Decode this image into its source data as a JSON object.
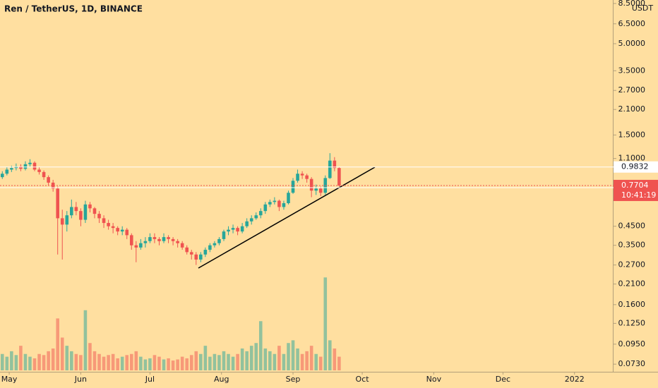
{
  "chart_data": {
    "type": "candlestick",
    "title": "Ren / TetherUS, 1D, BINANCE",
    "currency": "USDT",
    "log_scale": true,
    "background": "#ffdfa0",
    "up_color": "#26a69a",
    "down_color": "#ef5350",
    "ylim": [
      0.066,
      8.9
    ],
    "yticks": [
      {
        "value": 8.5,
        "label": "8.5000"
      },
      {
        "value": 6.5,
        "label": "6.5000"
      },
      {
        "value": 5,
        "label": "5.0000"
      },
      {
        "value": 3.5,
        "label": "3.5000"
      },
      {
        "value": 2.7,
        "label": "2.7000"
      },
      {
        "value": 2.1,
        "label": "2.1000"
      },
      {
        "value": 1.5,
        "label": "1.5000"
      },
      {
        "value": 1.1,
        "label": "1.1000"
      },
      {
        "value": 0.45,
        "label": "0.4500"
      },
      {
        "value": 0.35,
        "label": "0.3500"
      },
      {
        "value": 0.27,
        "label": "0.2700"
      },
      {
        "value": 0.21,
        "label": "0.2100"
      },
      {
        "value": 0.16,
        "label": "0.1600"
      },
      {
        "value": 0.125,
        "label": "0.1250"
      },
      {
        "value": 0.095,
        "label": "0.0950"
      },
      {
        "value": 0.073,
        "label": "0.0730"
      }
    ],
    "xlim": [
      0,
      132.5
    ],
    "xticks": [
      {
        "value": 2,
        "label": "May"
      },
      {
        "value": 17.5,
        "label": "Jun"
      },
      {
        "value": 32.5,
        "label": "Jul"
      },
      {
        "value": 48,
        "label": "Aug"
      },
      {
        "value": 63.5,
        "label": "Sep"
      },
      {
        "value": 78.5,
        "label": "Oct"
      },
      {
        "value": 94,
        "label": "Nov"
      },
      {
        "value": 109,
        "label": "Dec"
      },
      {
        "value": 124.5,
        "label": "2022"
      }
    ],
    "open": [
      0.86,
      0.9,
      0.95,
      0.97,
      0.99,
      0.96,
      1.02,
      1.04,
      0.95,
      0.92,
      0.86,
      0.8,
      0.74,
      0.5,
      0.46,
      0.52,
      0.58,
      0.55,
      0.49,
      0.6,
      0.57,
      0.53,
      0.5,
      0.47,
      0.45,
      0.44,
      0.42,
      0.43,
      0.4,
      0.35,
      0.34,
      0.36,
      0.37,
      0.39,
      0.38,
      0.37,
      0.39,
      0.38,
      0.37,
      0.36,
      0.34,
      0.32,
      0.31,
      0.29,
      0.31,
      0.33,
      0.35,
      0.36,
      0.38,
      0.42,
      0.43,
      0.44,
      0.42,
      0.45,
      0.48,
      0.5,
      0.52,
      0.55,
      0.6,
      0.62,
      0.63,
      0.58,
      0.61,
      0.7,
      0.82,
      0.9,
      0.88,
      0.84,
      0.72,
      0.74,
      0.7,
      0.85,
      1.07,
      0.97
    ],
    "high": [
      0.93,
      0.98,
      1.0,
      1.03,
      1.02,
      1.06,
      1.09,
      1.06,
      0.98,
      0.94,
      0.88,
      0.83,
      0.76,
      0.56,
      0.55,
      0.64,
      0.62,
      0.57,
      0.63,
      0.62,
      0.58,
      0.55,
      0.52,
      0.49,
      0.47,
      0.45,
      0.45,
      0.44,
      0.41,
      0.37,
      0.38,
      0.39,
      0.41,
      0.41,
      0.39,
      0.41,
      0.4,
      0.39,
      0.38,
      0.37,
      0.35,
      0.33,
      0.32,
      0.32,
      0.34,
      0.36,
      0.37,
      0.39,
      0.43,
      0.45,
      0.46,
      0.45,
      0.47,
      0.5,
      0.52,
      0.54,
      0.57,
      0.62,
      0.64,
      0.66,
      0.64,
      0.63,
      0.72,
      0.85,
      0.95,
      0.93,
      0.9,
      0.86,
      0.78,
      0.76,
      0.88,
      1.18,
      1.12,
      0.98
    ],
    "low": [
      0.84,
      0.88,
      0.92,
      0.94,
      0.93,
      0.94,
      0.99,
      0.93,
      0.89,
      0.83,
      0.77,
      0.71,
      0.31,
      0.29,
      0.42,
      0.5,
      0.52,
      0.45,
      0.47,
      0.54,
      0.5,
      0.47,
      0.44,
      0.43,
      0.41,
      0.4,
      0.4,
      0.38,
      0.33,
      0.28,
      0.33,
      0.34,
      0.36,
      0.36,
      0.35,
      0.36,
      0.36,
      0.35,
      0.34,
      0.33,
      0.31,
      0.29,
      0.27,
      0.28,
      0.3,
      0.32,
      0.34,
      0.35,
      0.37,
      0.4,
      0.41,
      0.4,
      0.41,
      0.44,
      0.46,
      0.49,
      0.5,
      0.53,
      0.58,
      0.6,
      0.55,
      0.56,
      0.6,
      0.69,
      0.8,
      0.84,
      0.8,
      0.66,
      0.68,
      0.67,
      0.68,
      0.84,
      0.93,
      0.76
    ],
    "close": [
      0.9,
      0.95,
      0.97,
      0.99,
      0.96,
      1.02,
      1.04,
      0.95,
      0.92,
      0.86,
      0.8,
      0.74,
      0.5,
      0.46,
      0.52,
      0.58,
      0.55,
      0.49,
      0.6,
      0.57,
      0.53,
      0.5,
      0.47,
      0.45,
      0.44,
      0.42,
      0.43,
      0.4,
      0.35,
      0.34,
      0.36,
      0.37,
      0.39,
      0.38,
      0.37,
      0.39,
      0.38,
      0.37,
      0.36,
      0.34,
      0.32,
      0.31,
      0.29,
      0.31,
      0.33,
      0.35,
      0.36,
      0.38,
      0.42,
      0.43,
      0.44,
      0.42,
      0.45,
      0.48,
      0.5,
      0.52,
      0.55,
      0.6,
      0.62,
      0.63,
      0.58,
      0.61,
      0.7,
      0.82,
      0.9,
      0.88,
      0.84,
      0.72,
      0.74,
      0.7,
      0.85,
      1.07,
      0.97,
      0.77
    ],
    "volume": [
      30,
      25,
      35,
      28,
      45,
      30,
      25,
      22,
      30,
      28,
      35,
      40,
      95,
      60,
      45,
      35,
      30,
      28,
      110,
      50,
      35,
      30,
      25,
      28,
      30,
      22,
      25,
      28,
      30,
      35,
      25,
      20,
      22,
      28,
      25,
      20,
      22,
      18,
      20,
      25,
      22,
      28,
      35,
      30,
      45,
      25,
      30,
      28,
      35,
      30,
      25,
      30,
      40,
      35,
      45,
      50,
      90,
      40,
      35,
      30,
      45,
      30,
      50,
      55,
      40,
      30,
      35,
      45,
      30,
      25,
      170,
      55,
      40,
      25
    ],
    "volume_lim": [
      0,
      200
    ],
    "levels": [
      0.9832,
      0.7485
    ],
    "last_price": 0.7704,
    "countdown": "10:41:19"
  }
}
